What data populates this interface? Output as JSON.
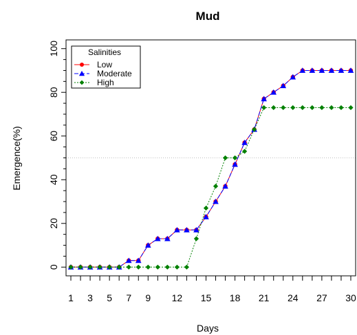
{
  "chart_data": {
    "type": "line",
    "title": "Mud",
    "xlabel": "Days",
    "ylabel": "Emergence(%)",
    "xlim": [
      0.5,
      30.5
    ],
    "ylim": [
      -4,
      104
    ],
    "x_ticks": [
      1,
      3,
      5,
      7,
      9,
      12,
      15,
      18,
      21,
      24,
      27,
      30
    ],
    "x_minor_ticks": [
      1,
      2,
      3,
      4,
      5,
      6,
      7,
      8,
      9,
      10,
      11,
      12,
      13,
      14,
      15,
      16,
      17,
      18,
      19,
      20,
      21,
      22,
      23,
      24,
      25,
      26,
      27,
      28,
      29,
      30
    ],
    "y_ticks": [
      0,
      20,
      40,
      60,
      80,
      100
    ],
    "reference_line": {
      "y": 50,
      "color": "#bfbfbf",
      "style": "dotted"
    },
    "legend": {
      "title": "Salinities",
      "position": "top-left"
    },
    "x": [
      1,
      2,
      3,
      4,
      5,
      6,
      7,
      8,
      9,
      10,
      11,
      12,
      13,
      14,
      15,
      16,
      17,
      18,
      19,
      20,
      21,
      22,
      23,
      24,
      25,
      26,
      27,
      28,
      29,
      30
    ],
    "series": [
      {
        "name": "Low",
        "color": "#ff0000",
        "marker": "circle",
        "dash": "solid",
        "values": [
          0,
          0,
          0,
          0,
          0,
          0,
          3,
          3,
          10,
          13,
          13,
          17,
          17,
          17,
          23,
          30,
          37,
          47,
          57,
          63,
          77,
          80,
          83,
          87,
          90,
          90,
          90,
          90,
          90,
          90
        ]
      },
      {
        "name": "Moderate",
        "color": "#0000ff",
        "marker": "triangle",
        "dash": "dashed",
        "values": [
          0,
          0,
          0,
          0,
          0,
          0,
          3,
          3,
          10,
          13,
          13,
          17,
          17,
          17,
          23,
          30,
          37,
          47,
          57,
          63,
          77,
          80,
          83,
          87,
          90,
          90,
          90,
          90,
          90,
          90
        ]
      },
      {
        "name": "High",
        "color": "#008000",
        "marker": "diamond",
        "dash": "dotted",
        "values": [
          0,
          0,
          0,
          0,
          0,
          0,
          0,
          0,
          0,
          0,
          0,
          0,
          0,
          13,
          27,
          37,
          50,
          50,
          53,
          63,
          73,
          73,
          73,
          73,
          73,
          73,
          73,
          73,
          73,
          73
        ]
      }
    ]
  }
}
